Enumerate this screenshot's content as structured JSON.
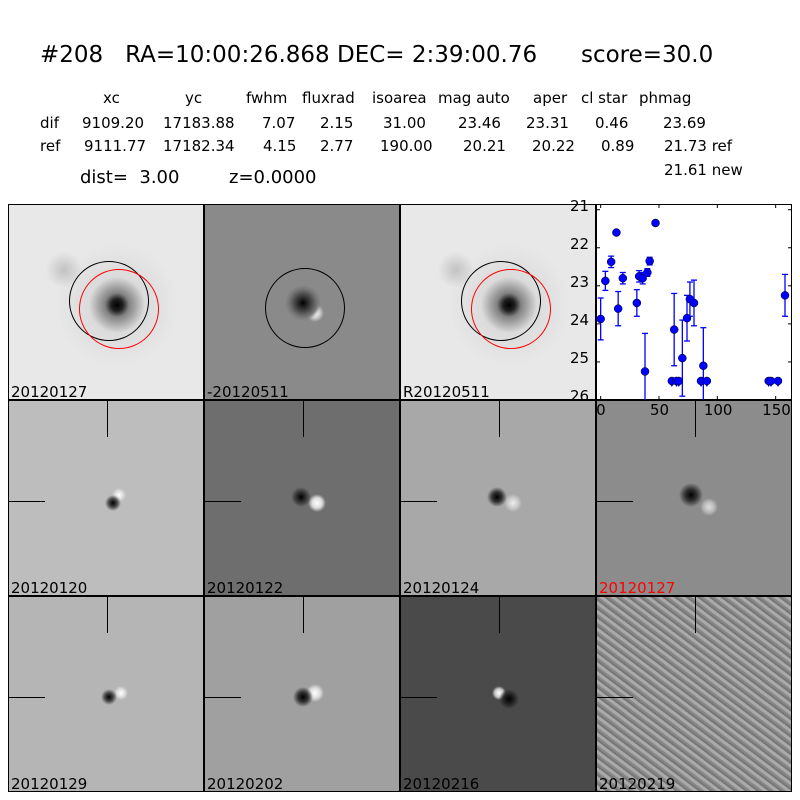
{
  "title": "#208   RA=10:00:26.868 DEC= 2:39:00.76      score=30.0",
  "table": {
    "headers": [
      "xc",
      "yc",
      "fwhm",
      "fluxrad",
      "isoarea",
      "mag auto",
      "aper",
      "cl star",
      "phmag"
    ],
    "rows": [
      {
        "label": "dif",
        "values": [
          "9109.20",
          "17183.88",
          "7.07",
          "2.15",
          "31.00",
          "23.46",
          "23.31",
          "0.46",
          "23.69"
        ]
      },
      {
        "label": "ref",
        "values": [
          "9111.77",
          "17182.34",
          "4.15",
          "2.77",
          "190.00",
          "20.21",
          "20.22",
          "0.89",
          "21.73 ref"
        ]
      }
    ],
    "extra": "21.61 new",
    "dist": "dist=  3.00",
    "z": "z=0.0000"
  },
  "panels": [
    {
      "label": "20120127"
    },
    {
      "label": "-20120511"
    },
    {
      "label": "R20120511"
    },
    {
      "label": "20120120"
    },
    {
      "label": "20120122"
    },
    {
      "label": "20120124"
    },
    {
      "label": "20120127",
      "color": "#ff0000"
    },
    {
      "label": "20120129"
    },
    {
      "label": "20120202"
    },
    {
      "label": "20120216"
    },
    {
      "label": "20120219"
    }
  ],
  "chart_data": {
    "type": "scatter",
    "xlim": [
      -4,
      164
    ],
    "ylim": [
      26,
      20.85
    ],
    "xticks": [
      "0",
      "50",
      "100",
      "150"
    ],
    "yticks": [
      "21",
      "22",
      "23",
      "24",
      "25",
      "26"
    ],
    "color": "#0000ff",
    "points": [
      {
        "x": 0,
        "y": 23.87,
        "err": 0.55
      },
      {
        "x": 4,
        "y": 22.87,
        "err": 0.25
      },
      {
        "x": 9,
        "y": 22.37,
        "err": 0.15
      },
      {
        "x": 13.5,
        "y": 21.6,
        "err": 0
      },
      {
        "x": 15,
        "y": 23.6,
        "err": 0.45
      },
      {
        "x": 19,
        "y": 22.8,
        "err": 0.15
      },
      {
        "x": 31,
        "y": 23.45,
        "err": 0.35
      },
      {
        "x": 33,
        "y": 22.75,
        "err": 0.15
      },
      {
        "x": 36,
        "y": 22.8,
        "err": 0.15
      },
      {
        "x": 38,
        "y": 25.25,
        "err": 1.0
      },
      {
        "x": 40,
        "y": 22.65,
        "err": 0.1
      },
      {
        "x": 42,
        "y": 22.35,
        "err": 0.1
      },
      {
        "x": 47,
        "y": 21.35,
        "err": 0
      },
      {
        "x": 63,
        "y": 24.15,
        "err": 0.95
      },
      {
        "x": 70,
        "y": 24.9,
        "err": 1.0
      },
      {
        "x": 74,
        "y": 23.85,
        "err": 0.6
      },
      {
        "x": 76.5,
        "y": 23.35,
        "err": 0.45
      },
      {
        "x": 80,
        "y": 23.45,
        "err": 0.6
      },
      {
        "x": 88,
        "y": 25.1,
        "err": 1.0
      },
      {
        "x": 158,
        "y": 23.25,
        "err": 0.55
      }
    ],
    "upper_limits": [
      {
        "x": 61,
        "y": 25.5
      },
      {
        "x": 65,
        "y": 25.5
      },
      {
        "x": 67,
        "y": 25.5
      },
      {
        "x": 86,
        "y": 25.5
      },
      {
        "x": 91,
        "y": 25.5
      },
      {
        "x": 144,
        "y": 25.5
      },
      {
        "x": 146,
        "y": 25.5
      },
      {
        "x": 152,
        "y": 25.5
      }
    ]
  }
}
